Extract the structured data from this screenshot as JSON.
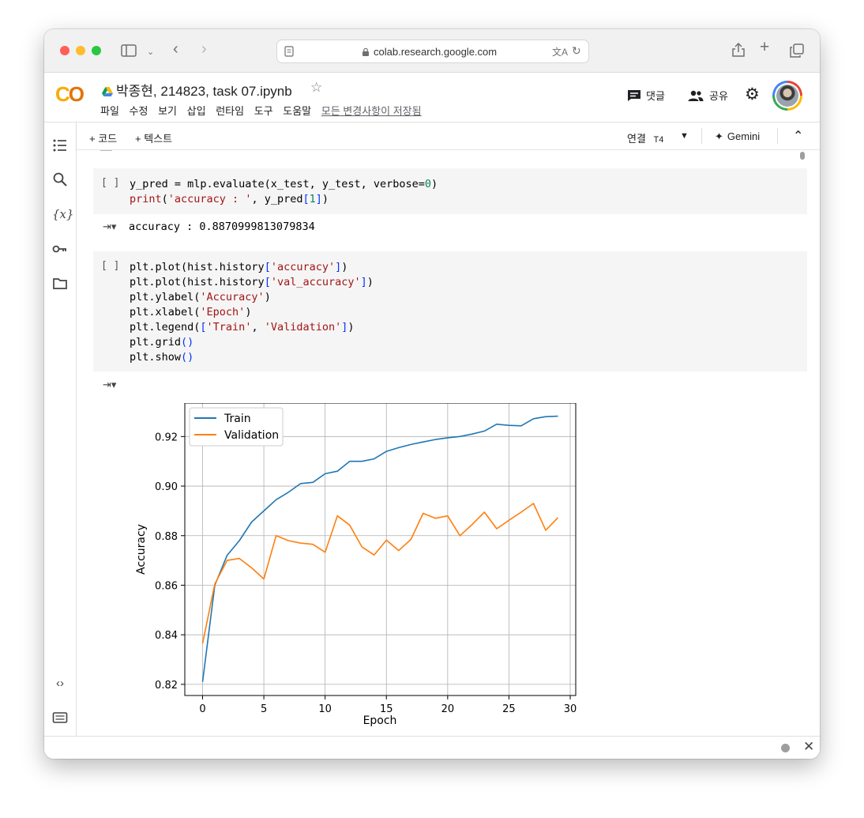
{
  "browser": {
    "url": "colab.research.google.com"
  },
  "header": {
    "title": "박종현, 214823, task 07.ipynb",
    "menu": [
      "파일",
      "수정",
      "보기",
      "삽입",
      "런타임",
      "도구",
      "도움말"
    ],
    "saved_status": "모든 변경사항이 저장됨",
    "comment_label": "댓글",
    "share_label": "공유"
  },
  "toolbar": {
    "add_code": "+ 코드",
    "add_text": "+ 텍스트",
    "connect_label": "연결",
    "runtime": "T4",
    "gemini": "Gemini"
  },
  "cells": [
    {
      "bracket": "[ ]",
      "code": "y_pred = mlp.evaluate(x_test, y_test, verbose=0)\nprint('accuracy : ', y_pred[1])",
      "output": "accuracy :  0.8870999813079834"
    },
    {
      "bracket": "[ ]",
      "code": "plt.plot(hist.history['accuracy'])\nplt.plot(hist.history['val_accuracy'])\nplt.ylabel('Accuracy')\nplt.xlabel('Epoch')\nplt.legend(['Train', 'Validation'])\nplt.grid()\nplt.show()"
    }
  ],
  "chart_data": {
    "type": "line",
    "title": "",
    "xlabel": "Epoch",
    "ylabel": "Accuracy",
    "xlim": [
      -1.45,
      30.45
    ],
    "ylim": [
      0.8155,
      0.9335
    ],
    "xticks": [
      0,
      5,
      10,
      15,
      20,
      25,
      30
    ],
    "yticks": [
      0.82,
      0.84,
      0.86,
      0.88,
      0.9,
      0.92
    ],
    "ytick_labels": [
      "0.82",
      "0.84",
      "0.86",
      "0.88",
      "0.90",
      "0.92"
    ],
    "grid": true,
    "legend": "upper-left",
    "x": [
      0,
      1,
      2,
      3,
      4,
      5,
      6,
      7,
      8,
      9,
      10,
      11,
      12,
      13,
      14,
      15,
      16,
      17,
      18,
      19,
      20,
      21,
      22,
      23,
      24,
      25,
      26,
      27,
      28,
      29
    ],
    "series": [
      {
        "name": "Train",
        "color": "#1f77b4",
        "values": [
          0.821,
          0.86,
          0.872,
          0.878,
          0.8855,
          0.89,
          0.8945,
          0.8975,
          0.901,
          0.9015,
          0.905,
          0.906,
          0.91,
          0.91,
          0.911,
          0.914,
          0.9155,
          0.9168,
          0.9178,
          0.9188,
          0.9195,
          0.92,
          0.921,
          0.9222,
          0.925,
          0.9245,
          0.9243,
          0.9272,
          0.928,
          0.9282
        ]
      },
      {
        "name": "Validation",
        "color": "#ff7f0e",
        "values": [
          0.8365,
          0.8605,
          0.87,
          0.8708,
          0.867,
          0.8625,
          0.88,
          0.878,
          0.877,
          0.8765,
          0.8733,
          0.888,
          0.8843,
          0.8755,
          0.8722,
          0.8782,
          0.874,
          0.8785,
          0.889,
          0.887,
          0.888,
          0.88,
          0.8845,
          0.8895,
          0.8828,
          0.8862,
          0.8895,
          0.893,
          0.8822,
          0.8873
        ]
      }
    ]
  }
}
